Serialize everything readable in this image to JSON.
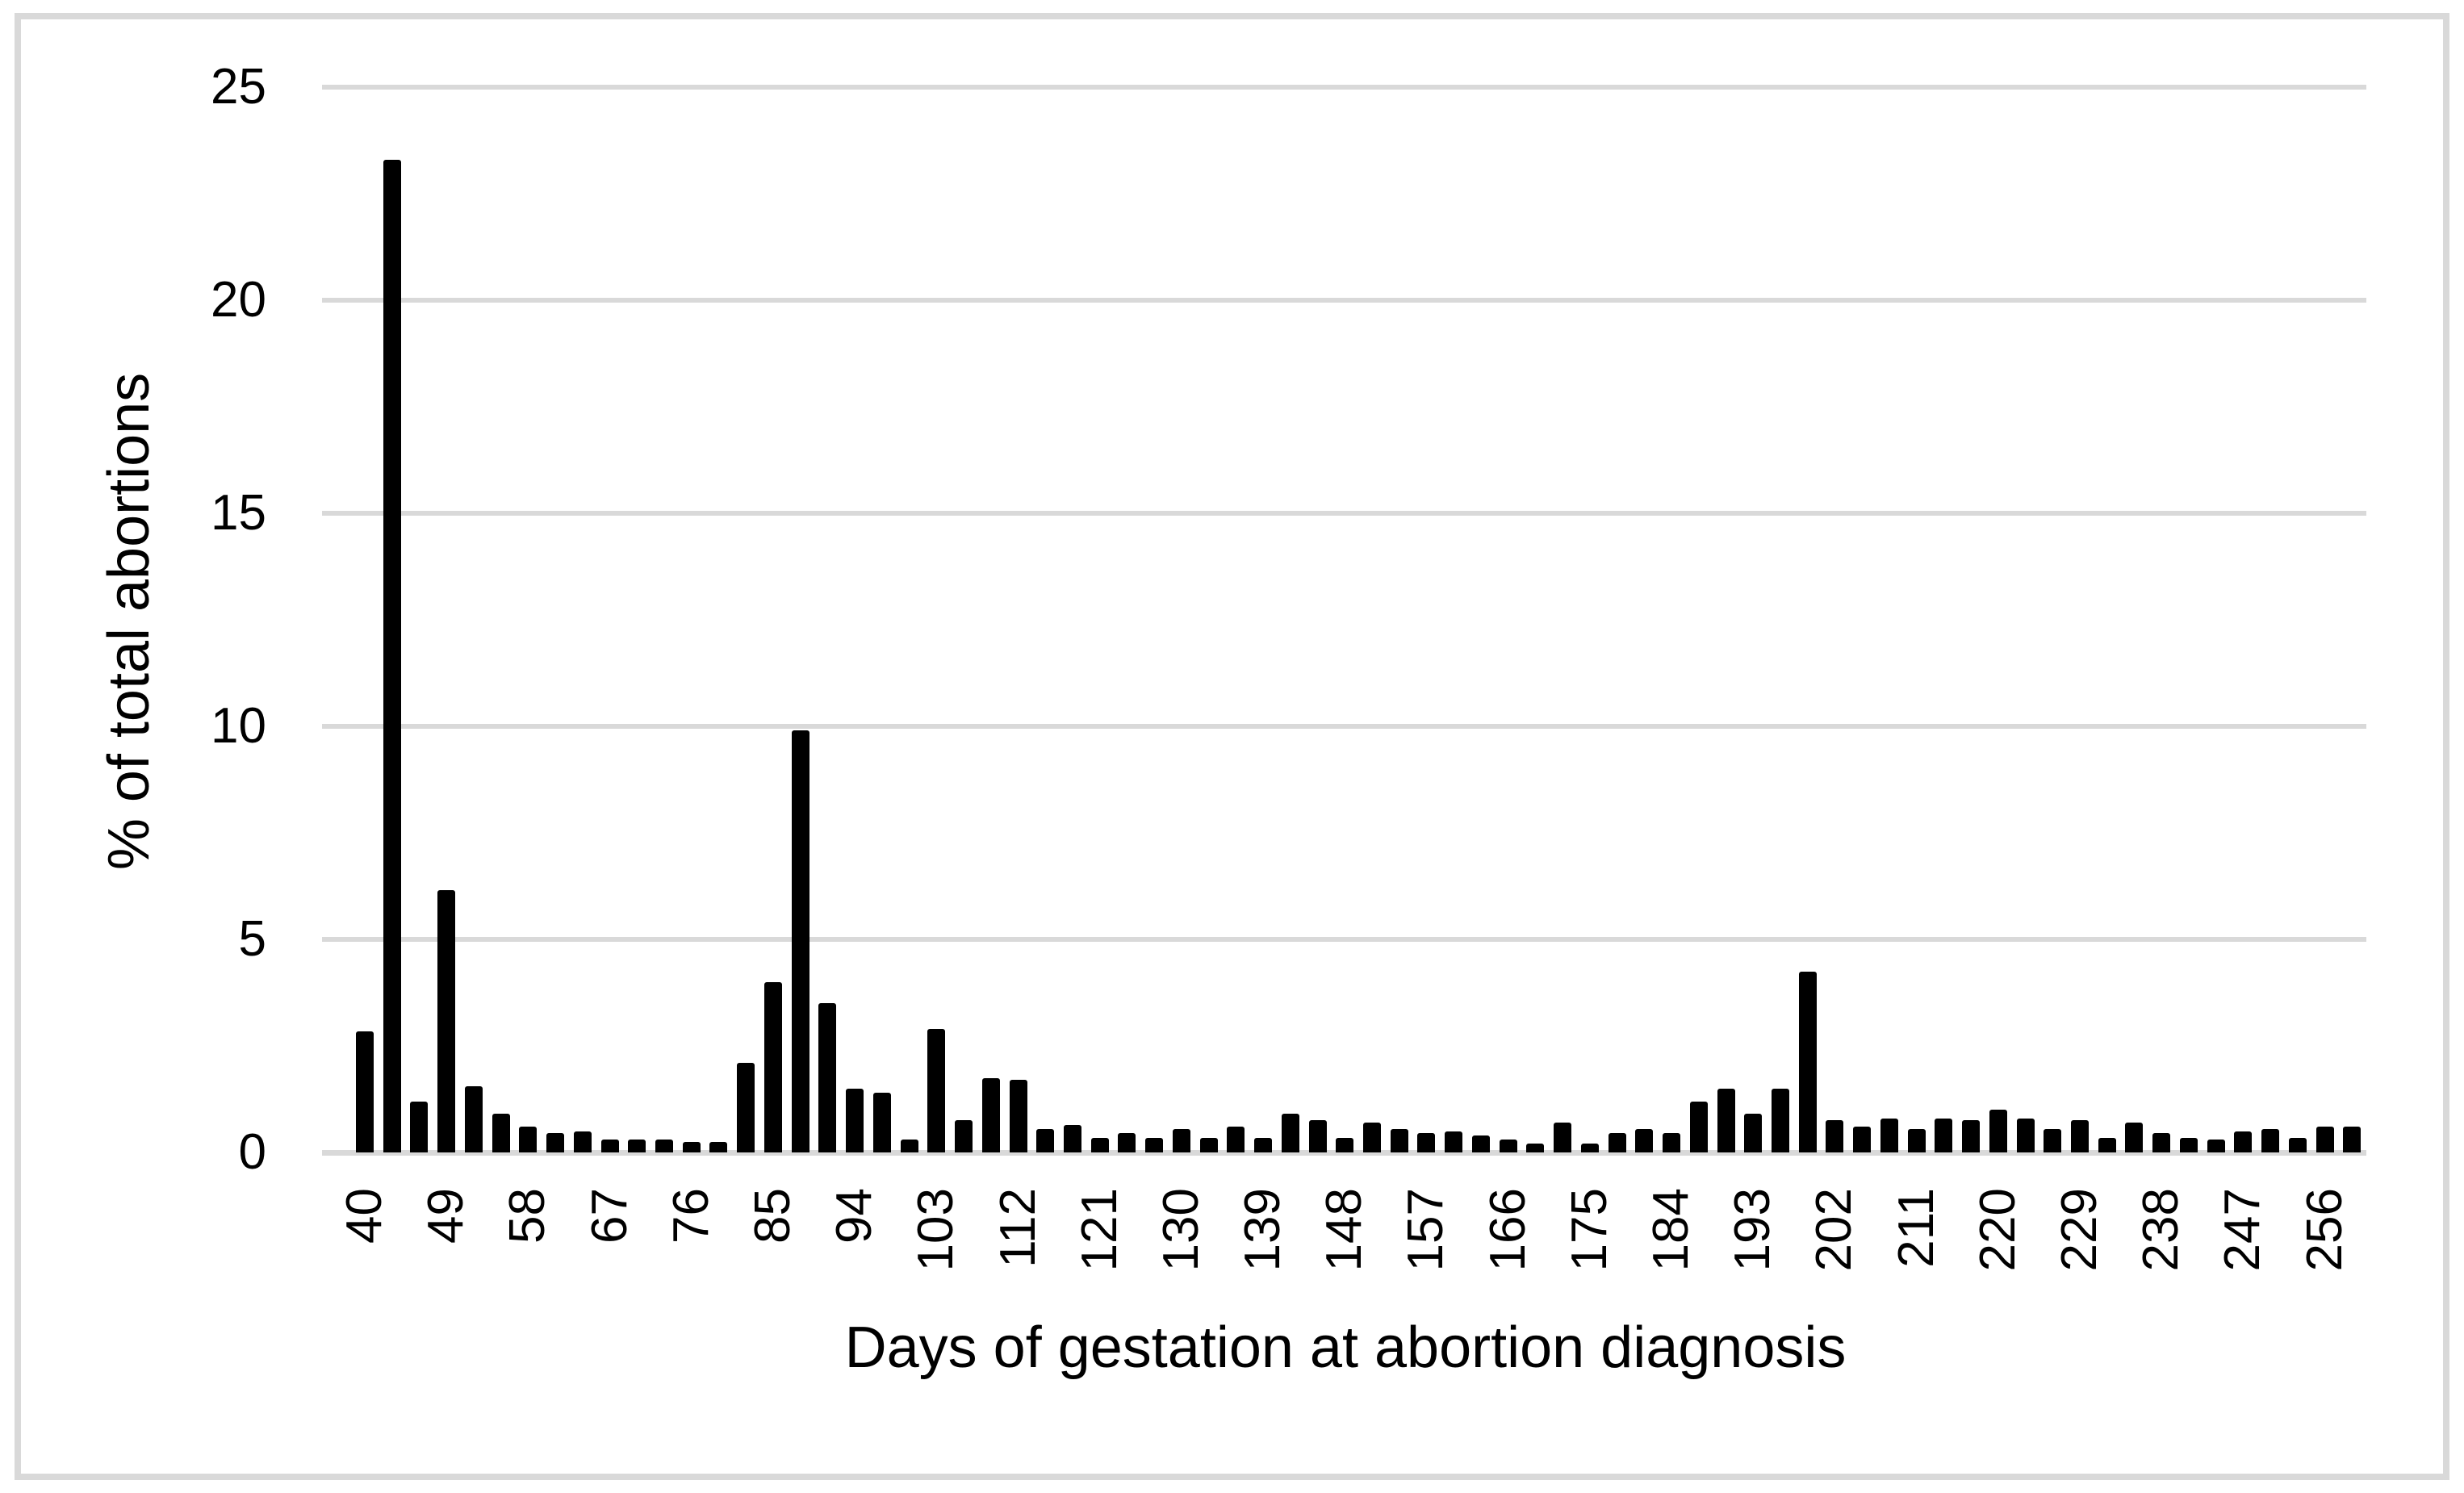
{
  "figure": {
    "background": "#ffffff",
    "border_color": "#d9d9d9",
    "gridline_color": "#d9d9d9",
    "bar_color": "#000000",
    "text_color": "#000000"
  },
  "chart_data": {
    "type": "bar",
    "title": "",
    "xlabel": "Days of gestation at abortion diagnosis",
    "ylabel": "% of total abortions",
    "ylim": [
      0,
      25
    ],
    "grid": "horizontal gridlines at 5,10,15,20,25",
    "legend": "none",
    "x": [
      40,
      43,
      46,
      49,
      52,
      55,
      58,
      61,
      64,
      67,
      70,
      73,
      76,
      79,
      82,
      85,
      88,
      91,
      94,
      97,
      100,
      103,
      106,
      109,
      112,
      115,
      118,
      121,
      124,
      127,
      130,
      133,
      136,
      139,
      142,
      145,
      148,
      151,
      154,
      157,
      160,
      163,
      166,
      169,
      172,
      175,
      178,
      181,
      184,
      187,
      190,
      193,
      196,
      199,
      202,
      205,
      208,
      211,
      214,
      217,
      220,
      223,
      226,
      229,
      232,
      235,
      238,
      241,
      244,
      247,
      250,
      253,
      256,
      259
    ],
    "values": [
      2.85,
      23.3,
      1.2,
      6.15,
      1.55,
      0.9,
      0.6,
      0.45,
      0.5,
      0.3,
      0.3,
      0.3,
      0.25,
      0.25,
      2.1,
      4.0,
      9.9,
      3.5,
      1.5,
      1.4,
      0.3,
      2.9,
      0.75,
      1.75,
      1.7,
      0.55,
      0.65,
      0.35,
      0.45,
      0.35,
      0.55,
      0.35,
      0.6,
      0.35,
      0.9,
      0.75,
      0.35,
      0.7,
      0.55,
      0.45,
      0.5,
      0.4,
      0.3,
      0.2,
      0.7,
      0.2,
      0.45,
      0.55,
      0.45,
      1.2,
      1.5,
      0.9,
      1.5,
      4.25,
      0.75,
      0.6,
      0.8,
      0.55,
      0.8,
      0.75,
      1.0,
      0.8,
      0.55,
      0.75,
      0.35,
      0.7,
      0.45,
      0.35,
      0.3,
      0.5,
      0.55,
      0.35,
      0.6,
      0.6
    ],
    "x_tick_labels": [
      "40",
      "49",
      "58",
      "67",
      "76",
      "85",
      "94",
      "103",
      "112",
      "121",
      "130",
      "139",
      "148",
      "157",
      "166",
      "175",
      "184",
      "193",
      "202",
      "211",
      "220",
      "229",
      "238",
      "247",
      "256"
    ],
    "y_tick_labels": [
      "0",
      "5",
      "10",
      "15",
      "20",
      "25"
    ]
  }
}
